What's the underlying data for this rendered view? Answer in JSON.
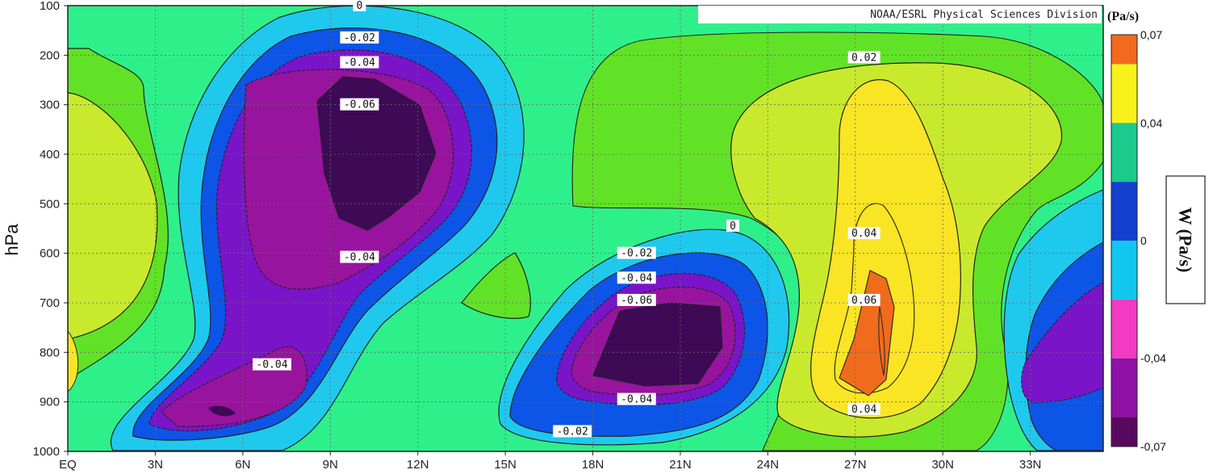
{
  "chart_data": {
    "type": "contour",
    "credit": "NOAA/ESRL Physical Sciences Division",
    "ylabel": "hPa",
    "xlabel": "",
    "x_ticks": [
      "EQ",
      "3N",
      "6N",
      "9N",
      "12N",
      "15N",
      "18N",
      "21N",
      "24N",
      "27N",
      "30N",
      "33N"
    ],
    "y_ticks": [
      "100",
      "200",
      "300",
      "400",
      "500",
      "600",
      "700",
      "800",
      "900",
      "1000"
    ],
    "xlim": [
      0,
      35.5
    ],
    "ylim": [
      1000,
      100
    ],
    "grid": true,
    "colorbar": {
      "unit": "(Pa/s)",
      "title": "W (Pa/s)",
      "tick_labels": [
        "0,07",
        "0,04",
        "0",
        "-0,04",
        "-0,07"
      ],
      "bands": [
        {
          "from": 0.06,
          "to": 0.07,
          "color": "#f26a1e"
        },
        {
          "from": 0.04,
          "to": 0.06,
          "color": "#f8f21a"
        },
        {
          "from": 0.02,
          "to": 0.04,
          "color": "#1bcb8e"
        },
        {
          "from": 0.0,
          "to": 0.02,
          "color": "#1440d0"
        },
        {
          "from": -0.02,
          "to": 0.0,
          "color": "#12c7ef"
        },
        {
          "from": -0.04,
          "to": -0.02,
          "color": "#f23ac2"
        },
        {
          "from": -0.06,
          "to": -0.04,
          "color": "#8d12a5"
        },
        {
          "from": -0.07,
          "to": -0.06,
          "color": "#5a0a5e"
        }
      ]
    },
    "fill_colors": {
      "background": "#2ef08a",
      "pos_low": "#62e226",
      "pos_mid": "#c9ea2c",
      "pos_high": "#f9e524",
      "pos_max": "#f06b1c",
      "neg_low": "#1fc9ee",
      "neg_mid": "#0d55e6",
      "neg_strong": "#1b2bd2",
      "neg_deep": "#7a14c8",
      "neg_core": "#98149e",
      "neg_max": "#3e0a55"
    },
    "field_centers": [
      {
        "name": "upper ascent core",
        "lat": 9.8,
        "hPa": 380,
        "w": -0.07
      },
      {
        "name": "lower ascent core",
        "lat": 5.0,
        "hPa": 920,
        "w": -0.05
      },
      {
        "name": "mid ascent core",
        "lat": 20.0,
        "hPa": 790,
        "w": -0.07
      },
      {
        "name": "subsidence core",
        "lat": 27.3,
        "hPa": 780,
        "w": 0.07
      },
      {
        "name": "east ascent",
        "lat": 34.5,
        "hPa": 820,
        "w": -0.04
      }
    ],
    "contour_labels": [
      {
        "text": "0",
        "lat": 10.0,
        "hPa": 100
      },
      {
        "text": "-0.02",
        "lat": 10.0,
        "hPa": 165
      },
      {
        "text": "-0.04",
        "lat": 10.0,
        "hPa": 215
      },
      {
        "text": "-0.06",
        "lat": 10.0,
        "hPa": 300
      },
      {
        "text": "-0.04",
        "lat": 10.0,
        "hPa": 608
      },
      {
        "text": "-0.04",
        "lat": 7.0,
        "hPa": 825
      },
      {
        "text": "0.02",
        "lat": 27.3,
        "hPa": 205
      },
      {
        "text": "0",
        "lat": 22.8,
        "hPa": 545
      },
      {
        "text": "0.04",
        "lat": 27.3,
        "hPa": 560
      },
      {
        "text": "-0.02",
        "lat": 19.5,
        "hPa": 600
      },
      {
        "text": "-0.04",
        "lat": 19.5,
        "hPa": 650
      },
      {
        "text": "-0.06",
        "lat": 19.5,
        "hPa": 695
      },
      {
        "text": "0.06",
        "lat": 27.3,
        "hPa": 695
      },
      {
        "text": "-0.04",
        "lat": 19.5,
        "hPa": 895
      },
      {
        "text": "0.04",
        "lat": 27.3,
        "hPa": 915
      },
      {
        "text": "-0.02",
        "lat": 17.3,
        "hPa": 960
      }
    ]
  }
}
